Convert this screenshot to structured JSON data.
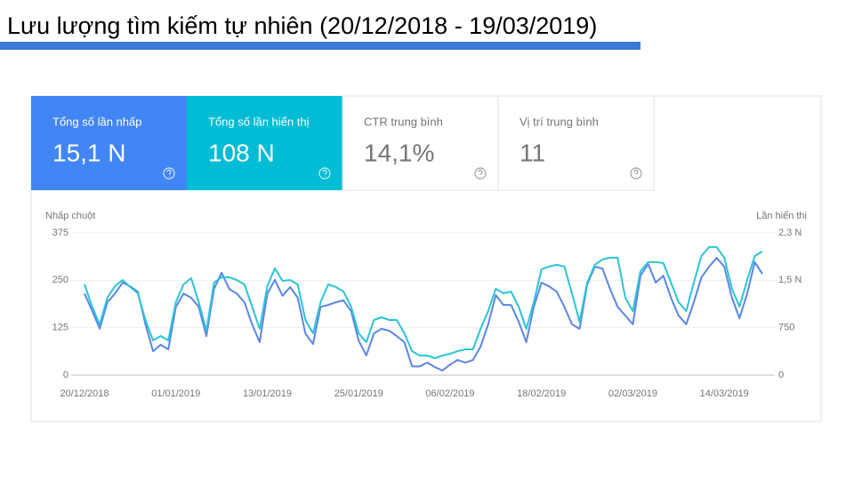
{
  "title": "Lưu lượng tìm kiếm tự nhiên (20/12/2018 - 19/03/2019)",
  "cards": [
    {
      "label": "Tổng số lần nhấp",
      "value": "15,1 N"
    },
    {
      "label": "Tổng số lần hiển thị",
      "value": "108 N"
    },
    {
      "label": "CTR trung bình",
      "value": "14,1%"
    },
    {
      "label": "Vị trí trung bình",
      "value": "11"
    }
  ],
  "chart_data": {
    "type": "line",
    "y_label": "Nhấp chuột",
    "y2_label": "Lần hiển thị",
    "categories": [
      "20/12/2018",
      null,
      null,
      null,
      null,
      null,
      null,
      null,
      null,
      null,
      null,
      null,
      "01/01/2019",
      null,
      null,
      null,
      null,
      null,
      null,
      null,
      null,
      null,
      null,
      null,
      "13/01/2019",
      null,
      null,
      null,
      null,
      null,
      null,
      null,
      null,
      null,
      null,
      null,
      "25/01/2019",
      null,
      null,
      null,
      null,
      null,
      null,
      null,
      null,
      null,
      null,
      null,
      "06/02/2019",
      null,
      null,
      null,
      null,
      null,
      null,
      null,
      null,
      null,
      null,
      null,
      "18/02/2019",
      null,
      null,
      null,
      null,
      null,
      null,
      null,
      null,
      null,
      null,
      null,
      "02/03/2019",
      null,
      null,
      null,
      null,
      null,
      null,
      null,
      null,
      null,
      null,
      null,
      "14/03/2019",
      null,
      null,
      null,
      null,
      null
    ],
    "series": [
      {
        "color": "#5b86e5",
        "values": [
          215,
          170,
          122,
          192,
          215,
          244,
          234,
          220,
          134,
          63,
          80,
          68,
          180,
          215,
          204,
          180,
          103,
          227,
          270,
          227,
          215,
          192,
          134,
          87,
          215,
          251,
          209,
          232,
          204,
          110,
          82,
          180,
          185,
          192,
          197,
          169,
          91,
          52,
          110,
          122,
          117,
          103,
          87,
          23,
          23,
          33,
          21,
          12,
          28,
          40,
          33,
          40,
          75,
          134,
          211,
          185,
          185,
          141,
          87,
          180,
          244,
          234,
          220,
          180,
          134,
          122,
          239,
          286,
          281,
          227,
          180,
          157,
          134,
          262,
          293,
          244,
          262,
          204,
          157,
          134,
          192,
          258,
          286,
          309,
          286,
          204,
          150,
          215,
          298,
          267
        ]
      },
      {
        "color": "#2bc4d4",
        "axis": "y2",
        "values": [
          1435,
          1083,
          802,
          1224,
          1407,
          1505,
          1393,
          1294,
          872,
          549,
          619,
          549,
          1154,
          1435,
          1534,
          1154,
          703,
          1463,
          1548,
          1548,
          1505,
          1435,
          1083,
          732,
          1407,
          1688,
          1491,
          1505,
          1435,
          872,
          661,
          1154,
          1435,
          1393,
          1322,
          1083,
          661,
          521,
          872,
          914,
          872,
          872,
          661,
          380,
          310,
          310,
          267,
          310,
          338,
          380,
          408,
          408,
          732,
          1013,
          1365,
          1294,
          1322,
          1083,
          732,
          1154,
          1674,
          1717,
          1745,
          1717,
          1294,
          844,
          1463,
          1745,
          1829,
          1857,
          1857,
          1224,
          1013,
          1646,
          1787,
          1787,
          1773,
          1463,
          1154,
          1013,
          1463,
          1885,
          2026,
          2026,
          1857,
          1365,
          1083,
          1505,
          1885,
          1956
        ]
      }
    ],
    "ylim": [
      0,
      375
    ],
    "yticks": [
      0,
      125,
      250,
      375
    ],
    "y2lim": [
      0,
      2250
    ],
    "y2ticks": [
      0,
      750,
      {
        "value": 1500,
        "label": "1,5 N"
      },
      {
        "value": 2250,
        "label": "2,3 N"
      }
    ],
    "grid": true,
    "card_colors": [
      "#4285f4",
      "#00bcd4",
      "#ffffff",
      "#ffffff"
    ]
  }
}
